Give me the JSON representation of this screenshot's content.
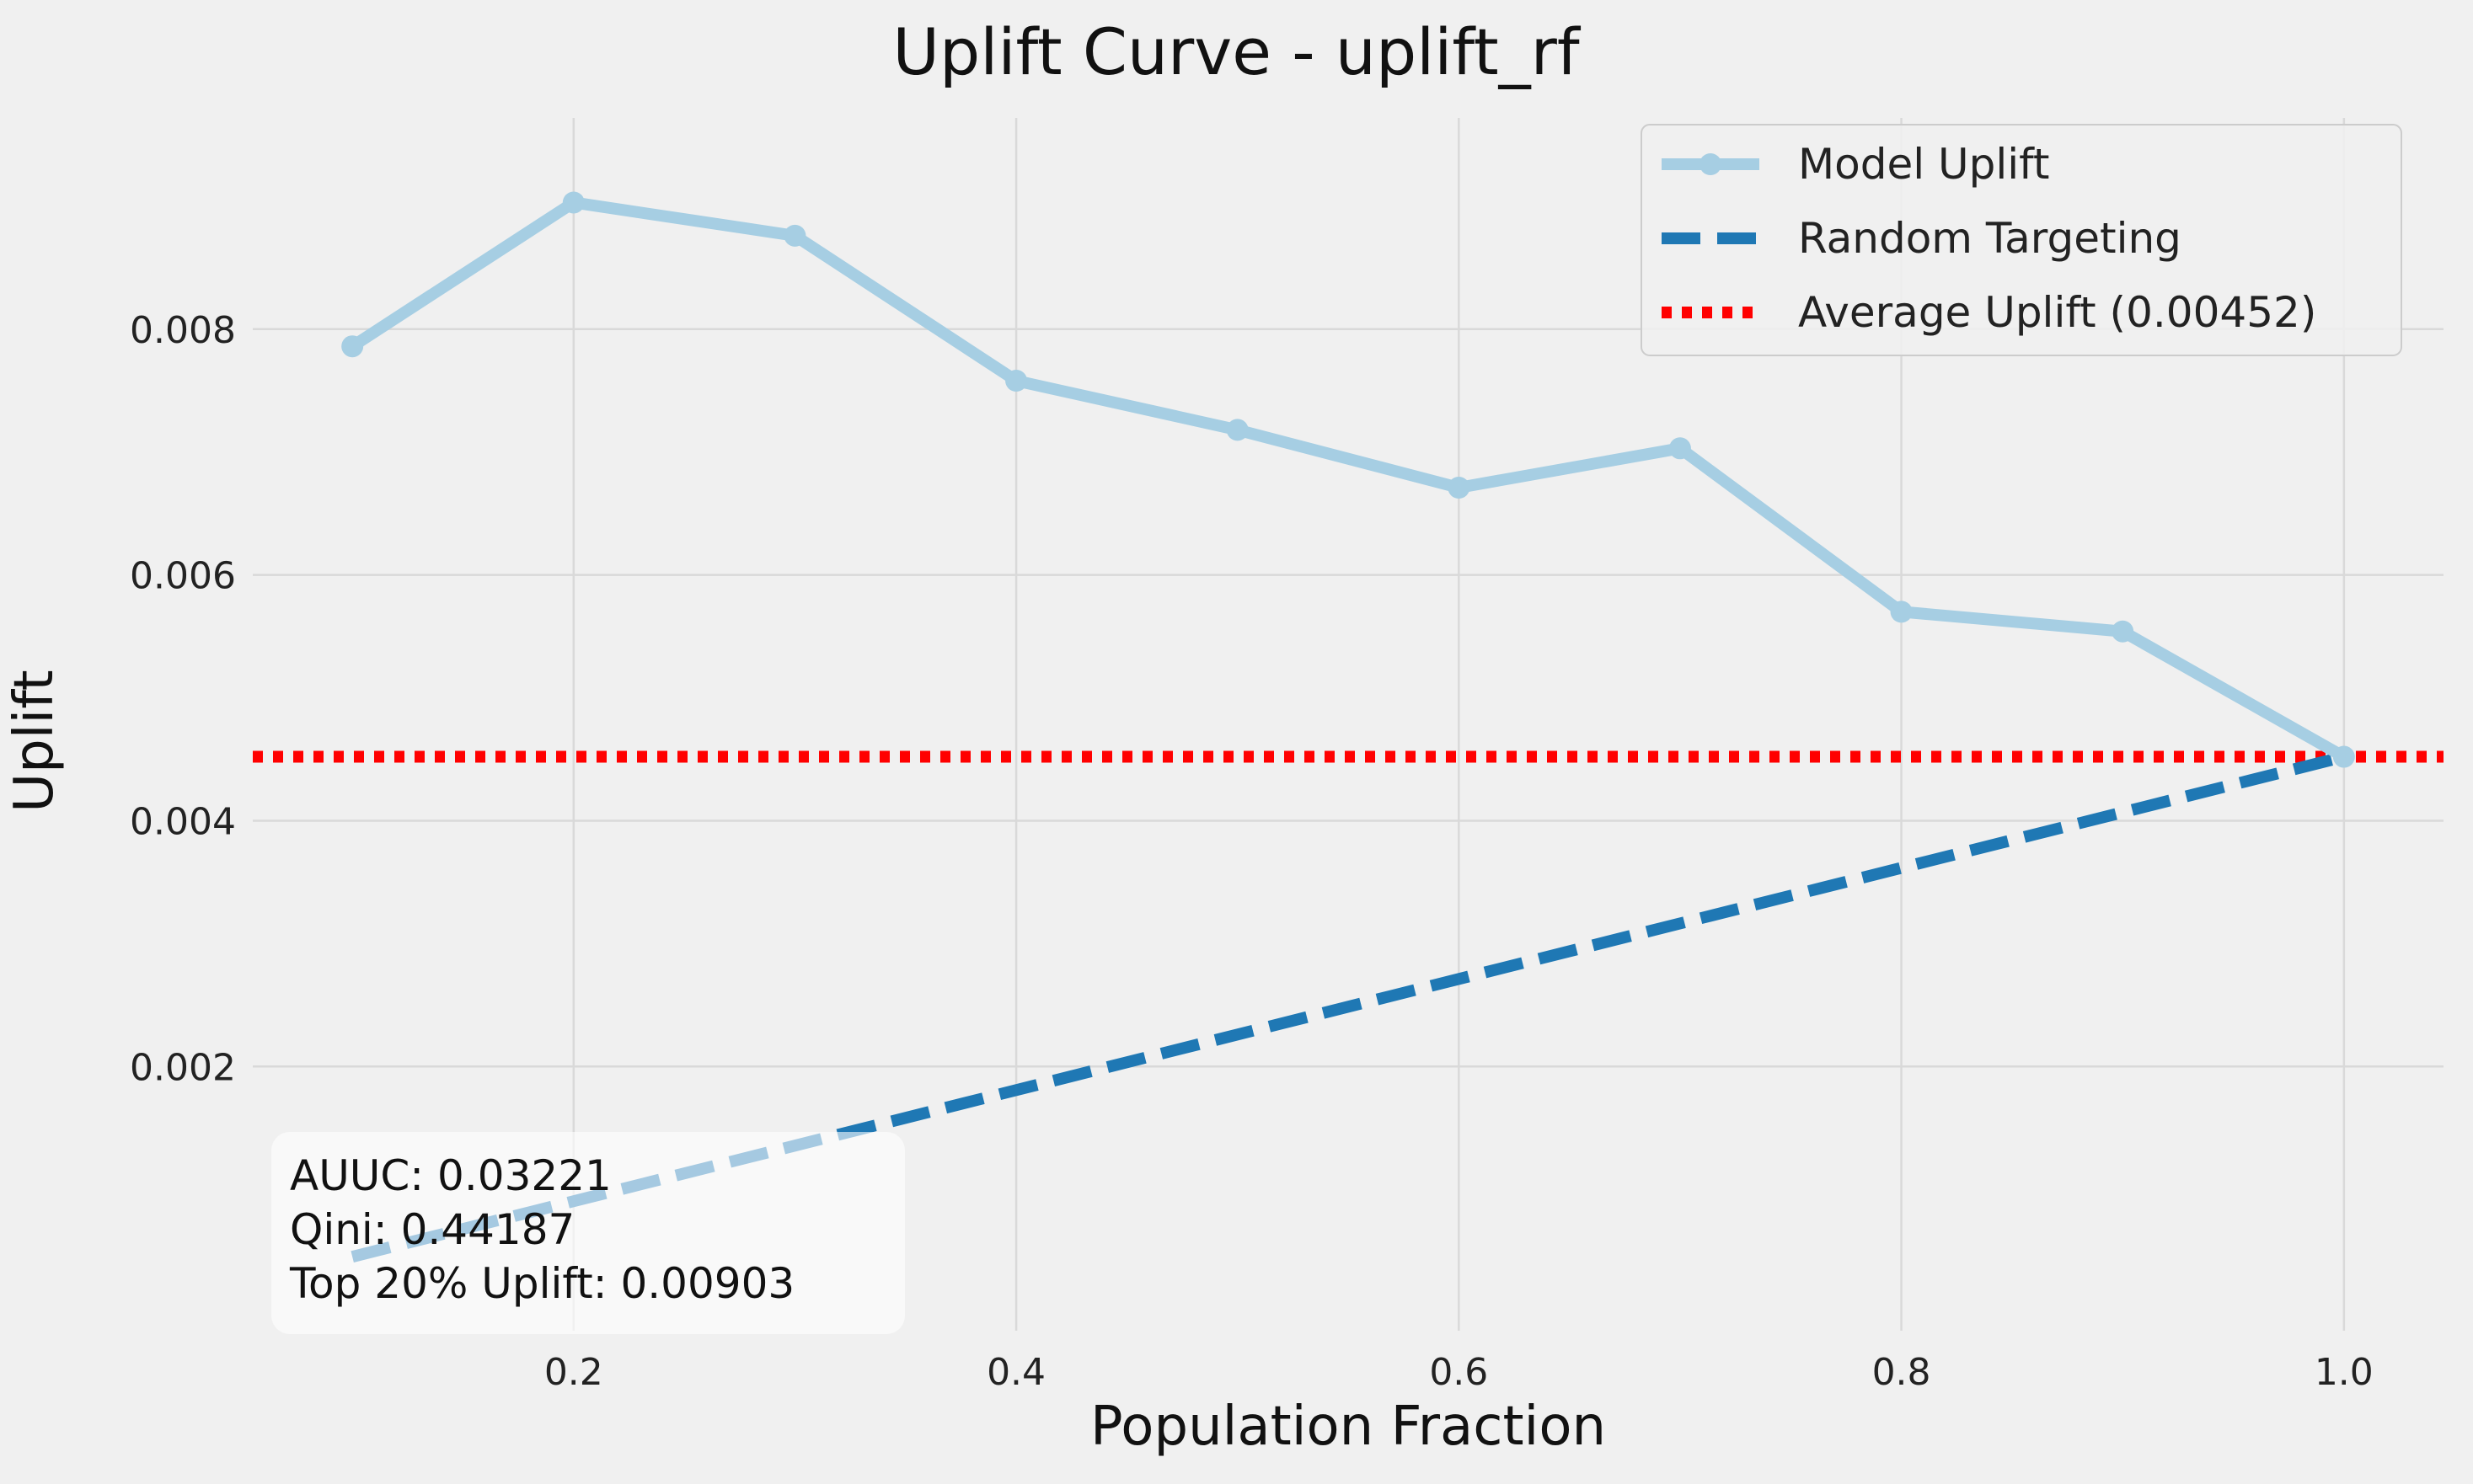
{
  "chart_data": {
    "type": "line",
    "title": "Uplift Curve - uplift_rf",
    "xlabel": "Population Fraction",
    "ylabel": "Uplift",
    "xlim": [
      0.055,
      1.045
    ],
    "ylim": [
      -0.00015,
      0.00965
    ],
    "xticks": [
      0.2,
      0.4,
      0.6,
      0.8,
      1.0
    ],
    "xtick_labels": [
      "0.2",
      "0.4",
      "0.6",
      "0.8",
      "1.0"
    ],
    "yticks": [
      0.002,
      0.004,
      0.006,
      0.008
    ],
    "ytick_labels": [
      "0.002",
      "0.004",
      "0.006",
      "0.008"
    ],
    "grid": true,
    "legend_position": "top-right",
    "series": [
      {
        "name": "Model Uplift",
        "style": "solid-with-markers",
        "color": "#a6cee3",
        "x": [
          0.1,
          0.2,
          0.3,
          0.4,
          0.5,
          0.6,
          0.7,
          0.8,
          0.9,
          1.0
        ],
        "y": [
          0.00786,
          0.00903,
          0.00876,
          0.00758,
          0.00718,
          0.00671,
          0.00703,
          0.0057,
          0.00554,
          0.00452
        ]
      },
      {
        "name": "Random Targeting",
        "style": "dashed",
        "color": "#1f78b4",
        "x": [
          0.1,
          1.0
        ],
        "y": [
          0.000452,
          0.00452
        ]
      },
      {
        "name": "Average Uplift (0.00452)",
        "style": "dotted-horizontal",
        "color": "#ff0000",
        "y": 0.00452
      }
    ],
    "annotation_lines": [
      "AUUC: 0.03221",
      "Qini: 0.44187",
      "Top 20% Uplift: 0.00903"
    ],
    "annotation_position": "bottom-left"
  }
}
